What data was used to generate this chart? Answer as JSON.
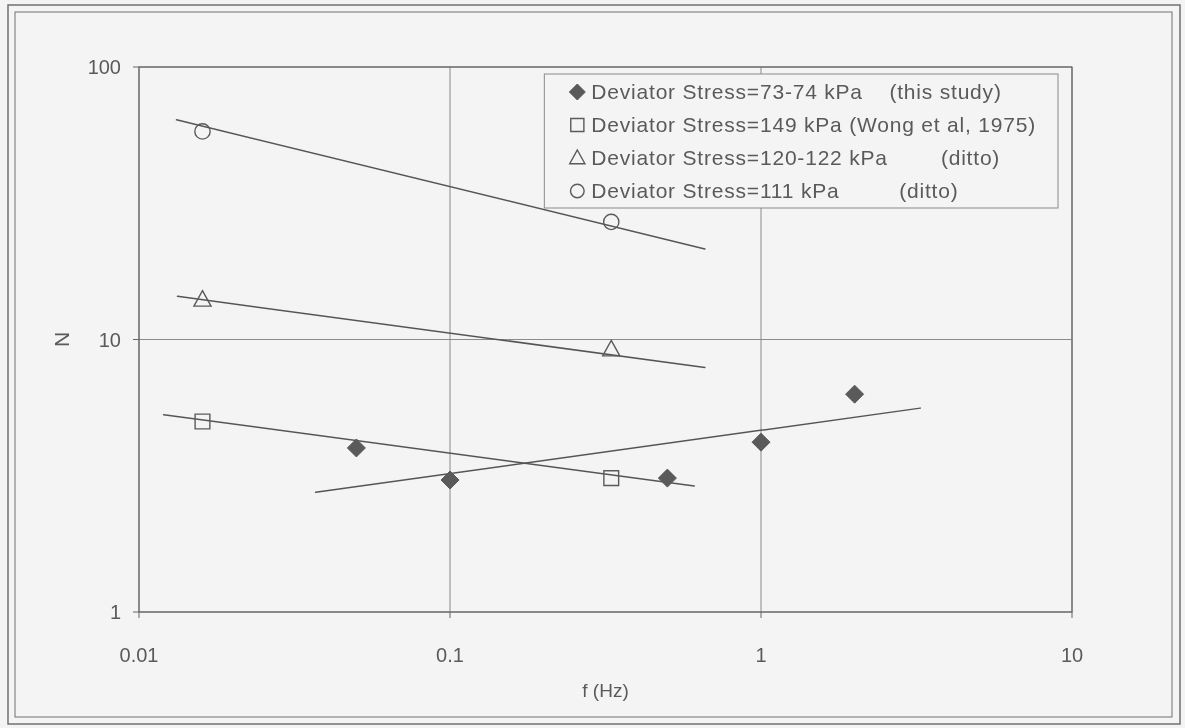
{
  "chart_data": {
    "type": "scatter",
    "xlabel": "f (Hz)",
    "ylabel": "N",
    "log": "xy",
    "xlim": [
      0.01,
      10
    ],
    "ylim": [
      1,
      100
    ],
    "xticks": [
      0.01,
      0.1,
      1,
      10
    ],
    "yticks": [
      1,
      10,
      100
    ],
    "grid": true,
    "legend": "top right",
    "series": [
      {
        "name": "Deviator Stress=73-74 kPa    (this study)",
        "marker": "diamond",
        "color": "#5a5a5a",
        "x": [
          0.05,
          0.1,
          0.5,
          1,
          2
        ],
        "values": [
          4.0,
          3.05,
          3.1,
          4.2,
          6.3
        ]
      },
      {
        "name": "Deviator Stress=149 kPa (Wong et al, 1975)",
        "marker": "square",
        "color": "#5a5a5a",
        "x": [
          0.016,
          0.33
        ],
        "values": [
          5.0,
          3.1
        ]
      },
      {
        "name": "Deviator Stress=120-122 kPa        (ditto)",
        "marker": "triangle",
        "color": "#5a5a5a",
        "x": [
          0.016,
          0.33
        ],
        "values": [
          14,
          9.2
        ]
      },
      {
        "name": "Deviator Stress=111 kPa         (ditto)",
        "marker": "circle",
        "color": "#5a5a5a",
        "x": [
          0.016,
          0.33
        ],
        "values": [
          58,
          27
        ]
      },
      {
        "type": "line",
        "color": "#555555",
        "x": [
          0.037,
          3.25
        ],
        "values": [
          2.75,
          5.6
        ]
      },
      {
        "type": "line",
        "color": "#555555",
        "x": [
          0.012,
          0.61
        ],
        "values": [
          5.3,
          2.9
        ]
      },
      {
        "type": "line",
        "color": "#555555",
        "x": [
          0.0133,
          0.66
        ],
        "values": [
          14.4,
          7.9
        ]
      },
      {
        "type": "line",
        "color": "#555555",
        "x": [
          0.0132,
          0.66
        ],
        "values": [
          64,
          21.5
        ]
      }
    ]
  }
}
